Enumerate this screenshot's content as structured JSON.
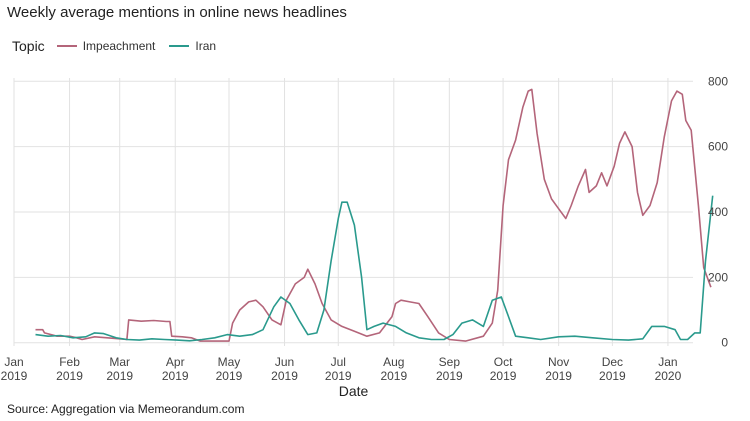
{
  "title": "Weekly average mentions in online news headlines",
  "source": "Source: Aggregation via Memeorandum.com",
  "legend": {
    "title": "Topic",
    "items": [
      {
        "label": "Impeachment",
        "color": "#b4657a"
      },
      {
        "label": "Iran",
        "color": "#2a9a8d"
      }
    ]
  },
  "chart_data": {
    "type": "line",
    "xlabel": "Date",
    "ylabel": "",
    "x_axis": "date",
    "xlim": [
      "2019-01-01",
      "2020-01-15"
    ],
    "ylim": [
      -10,
      810
    ],
    "yticks": [
      0,
      200,
      400,
      600,
      800
    ],
    "y_axis_side": "right",
    "grid": true,
    "legend_position": "top-left",
    "xticks": [
      {
        "date": "2019-01-01",
        "label": [
          "Jan",
          "2019"
        ]
      },
      {
        "date": "2019-02-01",
        "label": [
          "Feb",
          "2019"
        ]
      },
      {
        "date": "2019-03-01",
        "label": [
          "Mar",
          "2019"
        ]
      },
      {
        "date": "2019-04-01",
        "label": [
          "Apr",
          "2019"
        ]
      },
      {
        "date": "2019-05-01",
        "label": [
          "May",
          "2019"
        ]
      },
      {
        "date": "2019-06-01",
        "label": [
          "Jun",
          "2019"
        ]
      },
      {
        "date": "2019-07-01",
        "label": [
          "Jul",
          "2019"
        ]
      },
      {
        "date": "2019-08-01",
        "label": [
          "Aug",
          "2019"
        ]
      },
      {
        "date": "2019-09-01",
        "label": [
          "Sep",
          "2019"
        ]
      },
      {
        "date": "2019-10-01",
        "label": [
          "Oct",
          "2019"
        ]
      },
      {
        "date": "2019-11-01",
        "label": [
          "Nov",
          "2019"
        ]
      },
      {
        "date": "2019-12-01",
        "label": [
          "Dec",
          "2019"
        ]
      },
      {
        "date": "2020-01-01",
        "label": [
          "Jan",
          "2020"
        ]
      }
    ],
    "series": [
      {
        "name": "Impeachment",
        "color": "#b4657a",
        "points": [
          [
            "2019-01-13",
            40
          ],
          [
            "2019-01-17",
            40
          ],
          [
            "2019-01-18",
            30
          ],
          [
            "2019-01-25",
            20
          ],
          [
            "2019-02-01",
            20
          ],
          [
            "2019-02-05",
            15
          ],
          [
            "2019-02-08",
            10
          ],
          [
            "2019-02-15",
            18
          ],
          [
            "2019-02-22",
            15
          ],
          [
            "2019-03-01",
            12
          ],
          [
            "2019-03-05",
            10
          ],
          [
            "2019-03-06",
            70
          ],
          [
            "2019-03-13",
            66
          ],
          [
            "2019-03-20",
            68
          ],
          [
            "2019-03-27",
            65
          ],
          [
            "2019-03-29",
            65
          ],
          [
            "2019-03-30",
            20
          ],
          [
            "2019-04-05",
            18
          ],
          [
            "2019-04-10",
            15
          ],
          [
            "2019-04-15",
            5
          ],
          [
            "2019-04-22",
            5
          ],
          [
            "2019-05-01",
            5
          ],
          [
            "2019-05-03",
            60
          ],
          [
            "2019-05-07",
            100
          ],
          [
            "2019-05-12",
            125
          ],
          [
            "2019-05-16",
            130
          ],
          [
            "2019-05-20",
            110
          ],
          [
            "2019-05-25",
            70
          ],
          [
            "2019-05-30",
            55
          ],
          [
            "2019-06-02",
            130
          ],
          [
            "2019-06-07",
            180
          ],
          [
            "2019-06-12",
            200
          ],
          [
            "2019-06-14",
            225
          ],
          [
            "2019-06-18",
            180
          ],
          [
            "2019-06-22",
            120
          ],
          [
            "2019-06-27",
            70
          ],
          [
            "2019-07-03",
            50
          ],
          [
            "2019-07-10",
            35
          ],
          [
            "2019-07-17",
            20
          ],
          [
            "2019-07-24",
            30
          ],
          [
            "2019-07-31",
            80
          ],
          [
            "2019-08-02",
            120
          ],
          [
            "2019-08-05",
            130
          ],
          [
            "2019-08-10",
            125
          ],
          [
            "2019-08-15",
            120
          ],
          [
            "2019-08-20",
            80
          ],
          [
            "2019-08-26",
            30
          ],
          [
            "2019-09-01",
            10
          ],
          [
            "2019-09-10",
            5
          ],
          [
            "2019-09-20",
            20
          ],
          [
            "2019-09-25",
            60
          ],
          [
            "2019-09-28",
            160
          ],
          [
            "2019-10-01",
            420
          ],
          [
            "2019-10-04",
            560
          ],
          [
            "2019-10-08",
            620
          ],
          [
            "2019-10-12",
            720
          ],
          [
            "2019-10-15",
            770
          ],
          [
            "2019-10-17",
            775
          ],
          [
            "2019-10-20",
            640
          ],
          [
            "2019-10-24",
            500
          ],
          [
            "2019-10-28",
            440
          ],
          [
            "2019-11-01",
            410
          ],
          [
            "2019-11-05",
            380
          ],
          [
            "2019-11-08",
            420
          ],
          [
            "2019-11-12",
            480
          ],
          [
            "2019-11-16",
            530
          ],
          [
            "2019-11-18",
            460
          ],
          [
            "2019-11-22",
            480
          ],
          [
            "2019-11-25",
            520
          ],
          [
            "2019-11-28",
            480
          ],
          [
            "2019-12-02",
            540
          ],
          [
            "2019-12-05",
            610
          ],
          [
            "2019-12-08",
            645
          ],
          [
            "2019-12-12",
            600
          ],
          [
            "2019-12-15",
            460
          ],
          [
            "2019-12-18",
            390
          ],
          [
            "2019-12-22",
            420
          ],
          [
            "2019-12-26",
            490
          ],
          [
            "2019-12-30",
            630
          ],
          [
            "2020-01-03",
            740
          ],
          [
            "2020-01-06",
            770
          ],
          [
            "2020-01-09",
            760
          ],
          [
            "2020-01-11",
            680
          ],
          [
            "2020-01-14",
            650
          ],
          [
            "2020-01-18",
            420
          ],
          [
            "2020-01-21",
            230
          ],
          [
            "2020-01-25",
            170
          ]
        ]
      },
      {
        "name": "Iran",
        "color": "#2a9a8d",
        "points": [
          [
            "2019-01-13",
            25
          ],
          [
            "2019-01-20",
            20
          ],
          [
            "2019-01-27",
            22
          ],
          [
            "2019-02-03",
            15
          ],
          [
            "2019-02-10",
            18
          ],
          [
            "2019-02-15",
            30
          ],
          [
            "2019-02-20",
            28
          ],
          [
            "2019-02-27",
            15
          ],
          [
            "2019-03-05",
            10
          ],
          [
            "2019-03-12",
            8
          ],
          [
            "2019-03-19",
            12
          ],
          [
            "2019-03-26",
            10
          ],
          [
            "2019-04-02",
            8
          ],
          [
            "2019-04-09",
            6
          ],
          [
            "2019-04-16",
            10
          ],
          [
            "2019-04-23",
            15
          ],
          [
            "2019-04-30",
            25
          ],
          [
            "2019-05-07",
            20
          ],
          [
            "2019-05-14",
            25
          ],
          [
            "2019-05-20",
            40
          ],
          [
            "2019-05-26",
            110
          ],
          [
            "2019-05-30",
            140
          ],
          [
            "2019-06-04",
            120
          ],
          [
            "2019-06-09",
            70
          ],
          [
            "2019-06-14",
            25
          ],
          [
            "2019-06-19",
            30
          ],
          [
            "2019-06-23",
            100
          ],
          [
            "2019-06-27",
            250
          ],
          [
            "2019-07-01",
            380
          ],
          [
            "2019-07-03",
            430
          ],
          [
            "2019-07-06",
            430
          ],
          [
            "2019-07-10",
            360
          ],
          [
            "2019-07-14",
            200
          ],
          [
            "2019-07-17",
            40
          ],
          [
            "2019-07-21",
            50
          ],
          [
            "2019-07-26",
            60
          ],
          [
            "2019-08-02",
            50
          ],
          [
            "2019-08-08",
            30
          ],
          [
            "2019-08-15",
            15
          ],
          [
            "2019-08-22",
            10
          ],
          [
            "2019-08-29",
            10
          ],
          [
            "2019-09-03",
            25
          ],
          [
            "2019-09-08",
            60
          ],
          [
            "2019-09-14",
            70
          ],
          [
            "2019-09-20",
            50
          ],
          [
            "2019-09-25",
            130
          ],
          [
            "2019-09-30",
            140
          ],
          [
            "2019-10-04",
            80
          ],
          [
            "2019-10-08",
            20
          ],
          [
            "2019-10-15",
            15
          ],
          [
            "2019-10-22",
            10
          ],
          [
            "2019-11-01",
            18
          ],
          [
            "2019-11-10",
            20
          ],
          [
            "2019-11-20",
            15
          ],
          [
            "2019-12-01",
            10
          ],
          [
            "2019-12-10",
            8
          ],
          [
            "2019-12-18",
            12
          ],
          [
            "2019-12-23",
            50
          ],
          [
            "2019-12-30",
            50
          ],
          [
            "2020-01-05",
            40
          ],
          [
            "2020-01-08",
            10
          ],
          [
            "2020-01-12",
            10
          ],
          [
            "2020-01-16",
            30
          ],
          [
            "2020-01-19",
            30
          ],
          [
            "2020-01-22",
            250
          ],
          [
            "2020-01-26",
            450
          ]
        ]
      }
    ]
  }
}
